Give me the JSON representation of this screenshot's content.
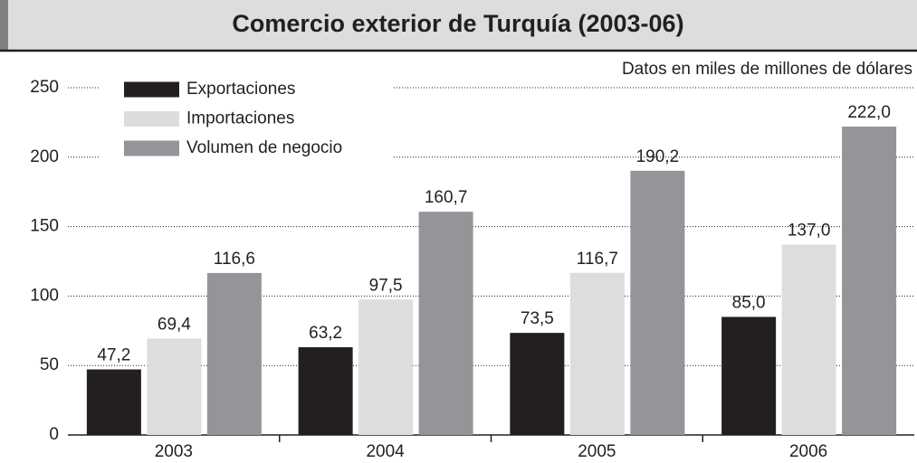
{
  "chart_data": {
    "type": "bar",
    "title": "Comercio exterior de Turquía (2003-06)",
    "subtitle": "Datos en miles de millones de dólares",
    "categories": [
      "2003",
      "2004",
      "2005",
      "2006"
    ],
    "series": [
      {
        "name": "Exportaciones",
        "color": "#231f20",
        "values": [
          47.2,
          63.2,
          73.5,
          85.0
        ],
        "value_labels": [
          "47,2",
          "63,2",
          "73,5",
          "85,0"
        ]
      },
      {
        "name": "Importaciones",
        "color": "#dcdddd",
        "values": [
          69.4,
          97.5,
          116.7,
          137.0
        ],
        "value_labels": [
          "69,4",
          "97,5",
          "116,7",
          "137,0"
        ]
      },
      {
        "name": "Volumen de negocio",
        "color": "#939598",
        "values": [
          116.6,
          160.7,
          190.2,
          222.0
        ],
        "value_labels": [
          "116,6",
          "160,7",
          "190,2",
          "222,0"
        ]
      }
    ],
    "ylim": [
      0,
      250
    ],
    "yticks": [
      0,
      50,
      100,
      150,
      200,
      250
    ],
    "grid": true,
    "legend": "upper left"
  }
}
